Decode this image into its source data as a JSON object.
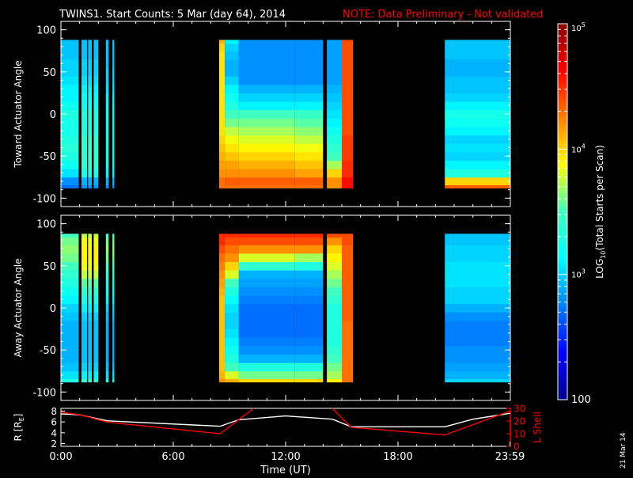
{
  "title": {
    "main": "TWINS1. Start Counts:  5 Mar (day  64), 2014",
    "note": "NOTE: Data Preliminary - Not validated"
  },
  "side_date": "21 Mar 14",
  "colors": {
    "background": "#000000",
    "axes": "#ffffff",
    "note": "#ff0000",
    "r_line": "#ffffff",
    "lshell_line": "#ff0000"
  },
  "chart_data": [
    {
      "type": "heatmap",
      "name": "toward",
      "ylabel": "Toward Actuator Angle",
      "ylim": [
        -110,
        110
      ],
      "yticks": [
        -100,
        -50,
        0,
        50,
        100
      ],
      "xlim": [
        0,
        24
      ],
      "y_rows": [
        -88,
        -80,
        -70,
        -60,
        -50,
        -40,
        -30,
        -20,
        -10,
        0,
        10,
        20,
        30,
        40,
        50,
        60,
        70,
        80,
        88
      ],
      "segments": [
        {
          "t0": 0.0,
          "t1": 0.95,
          "values": [
            2.7,
            2.8,
            3.05,
            3.2,
            3.3,
            3.35,
            3.3,
            3.25,
            3.25,
            3.3,
            3.2,
            3.1,
            3.1,
            3.05,
            3.0,
            3.0,
            2.95,
            2.95,
            2.95
          ]
        },
        {
          "t0": 1.1,
          "t1": 1.4,
          "values": [
            2.8,
            2.9,
            3.25,
            3.4,
            3.4,
            3.4,
            3.4,
            3.3,
            3.3,
            3.3,
            3.2,
            3.15,
            3.1,
            3.05,
            3.0,
            3.0,
            2.95,
            2.95,
            2.95
          ]
        },
        {
          "t0": 1.45,
          "t1": 1.65,
          "values": [
            2.8,
            2.9,
            3.25,
            3.4,
            3.4,
            3.4,
            3.4,
            3.3,
            3.3,
            3.3,
            3.2,
            3.15,
            3.1,
            3.05,
            3.0,
            3.0,
            2.95,
            2.95,
            2.95
          ]
        },
        {
          "t0": 1.75,
          "t1": 2.0,
          "values": [
            2.8,
            2.9,
            3.25,
            3.4,
            3.4,
            3.4,
            3.4,
            3.3,
            3.3,
            3.3,
            3.2,
            3.15,
            3.1,
            3.05,
            3.0,
            3.0,
            2.95,
            2.95,
            2.95
          ]
        },
        {
          "t0": 2.4,
          "t1": 2.55,
          "values": [
            2.8,
            2.9,
            3.1,
            3.2,
            3.2,
            3.2,
            3.2,
            3.2,
            3.2,
            3.2,
            3.15,
            3.1,
            3.05,
            3.0,
            3.0,
            2.95,
            2.95,
            2.95,
            2.95
          ]
        },
        {
          "t0": 2.75,
          "t1": 2.85,
          "values": [
            2.8,
            2.9,
            3.1,
            3.2,
            3.2,
            3.2,
            3.2,
            3.2,
            3.2,
            3.2,
            3.15,
            3.1,
            3.05,
            3.0,
            3.0,
            2.95,
            2.95,
            2.95,
            2.95
          ]
        },
        {
          "t0": 8.45,
          "t1": 8.75,
          "values": [
            4.3,
            4.3,
            4.2,
            4.15,
            4.1,
            4.05,
            4.0,
            3.95,
            3.95,
            3.95,
            3.95,
            3.95,
            3.95,
            3.95,
            3.95,
            3.95,
            3.95,
            4.0,
            4.1
          ]
        },
        {
          "t0": 8.75,
          "t1": 9.5,
          "values": [
            4.3,
            4.35,
            4.2,
            4.15,
            4.05,
            3.95,
            3.85,
            3.75,
            3.6,
            3.5,
            3.3,
            3.2,
            3.1,
            3.0,
            2.9,
            2.9,
            2.95,
            3.0,
            3.1
          ]
        },
        {
          "t0": 9.5,
          "t1": 12.5,
          "values": [
            4.3,
            4.35,
            4.2,
            4.1,
            4.0,
            3.9,
            3.8,
            3.7,
            3.6,
            3.5,
            3.1,
            3.0,
            2.9,
            2.8,
            2.8,
            2.8,
            2.8,
            2.8,
            2.8
          ]
        },
        {
          "t0": 12.5,
          "t1": 14.0,
          "values": [
            4.3,
            4.35,
            4.15,
            4.05,
            3.95,
            3.85,
            3.75,
            3.65,
            3.55,
            3.45,
            3.1,
            3.0,
            2.9,
            2.8,
            2.8,
            2.8,
            2.8,
            2.8,
            2.8
          ]
        },
        {
          "t0": 14.2,
          "t1": 15.0,
          "values": [
            4.2,
            4.2,
            4.0,
            3.7,
            3.5,
            3.4,
            3.3,
            3.2,
            3.1,
            3.05,
            3.0,
            2.95,
            2.9,
            2.85,
            2.85,
            2.85,
            2.85,
            2.85,
            2.85
          ]
        },
        {
          "t0": 15.0,
          "t1": 15.6,
          "values": [
            4.6,
            4.6,
            4.5,
            4.5,
            4.45,
            4.45,
            4.45,
            4.4,
            4.4,
            4.4,
            4.4,
            4.4,
            4.4,
            4.4,
            4.4,
            4.4,
            4.4,
            4.4,
            4.4
          ]
        },
        {
          "t0": 20.5,
          "t1": 24.0,
          "values": [
            4.35,
            4.0,
            3.3,
            3.1,
            3.0,
            3.05,
            3.0,
            3.1,
            3.2,
            3.25,
            3.1,
            3.0,
            2.95,
            2.95,
            2.9,
            2.9,
            2.95,
            2.95,
            2.95
          ]
        }
      ]
    },
    {
      "type": "heatmap",
      "name": "away",
      "ylabel": "Away Actuator Angle",
      "ylim": [
        -110,
        110
      ],
      "yticks": [
        -100,
        -50,
        0,
        50,
        100
      ],
      "xlim": [
        0,
        24
      ],
      "y_rows": [
        -88,
        -80,
        -70,
        -60,
        -50,
        -40,
        -30,
        -20,
        -10,
        0,
        10,
        20,
        30,
        40,
        50,
        60,
        70,
        80,
        88
      ],
      "segments": [
        {
          "t0": 0.0,
          "t1": 0.95,
          "values": [
            3.3,
            3.05,
            2.95,
            2.9,
            2.9,
            2.9,
            2.9,
            2.9,
            2.95,
            3.0,
            3.1,
            3.2,
            3.3,
            3.4,
            3.5,
            3.6,
            3.65,
            3.6,
            3.5
          ]
        },
        {
          "t0": 1.1,
          "t1": 1.4,
          "values": [
            3.4,
            3.1,
            3.0,
            2.95,
            2.95,
            2.95,
            2.95,
            2.95,
            3.0,
            3.1,
            3.25,
            3.4,
            3.55,
            3.75,
            3.85,
            3.9,
            3.9,
            3.85,
            3.75
          ]
        },
        {
          "t0": 1.45,
          "t1": 1.65,
          "values": [
            3.4,
            3.1,
            3.0,
            2.95,
            2.95,
            2.95,
            2.95,
            2.95,
            3.0,
            3.1,
            3.25,
            3.4,
            3.55,
            3.75,
            3.85,
            3.9,
            3.9,
            3.85,
            3.75
          ]
        },
        {
          "t0": 1.75,
          "t1": 2.0,
          "values": [
            3.4,
            3.1,
            3.0,
            2.95,
            2.95,
            2.95,
            2.95,
            2.95,
            3.0,
            3.1,
            3.25,
            3.4,
            3.55,
            3.75,
            3.85,
            3.9,
            3.9,
            3.85,
            3.75
          ]
        },
        {
          "t0": 2.4,
          "t1": 2.55,
          "values": [
            3.3,
            3.05,
            2.95,
            2.9,
            2.9,
            2.9,
            2.9,
            2.9,
            2.95,
            3.0,
            3.1,
            3.2,
            3.3,
            3.4,
            3.5,
            3.6,
            3.65,
            3.6,
            3.5
          ]
        },
        {
          "t0": 2.75,
          "t1": 2.85,
          "values": [
            3.3,
            3.05,
            2.95,
            2.9,
            2.9,
            2.9,
            2.9,
            2.9,
            2.95,
            3.0,
            3.1,
            3.2,
            3.3,
            3.4,
            3.5,
            3.6,
            3.65,
            3.6,
            3.5
          ]
        },
        {
          "t0": 8.45,
          "t1": 8.75,
          "values": [
            4.2,
            4.1,
            4.05,
            4.05,
            4.05,
            4.05,
            4.05,
            4.05,
            4.05,
            4.05,
            4.05,
            4.1,
            4.15,
            4.2,
            4.25,
            4.3,
            4.4,
            4.5,
            4.5
          ]
        },
        {
          "t0": 8.75,
          "t1": 9.5,
          "values": [
            4.1,
            3.8,
            3.5,
            3.3,
            3.2,
            3.1,
            3.05,
            3.0,
            3.0,
            3.05,
            3.15,
            3.3,
            3.5,
            3.8,
            4.0,
            4.2,
            4.3,
            4.4,
            4.5
          ]
        },
        {
          "t0": 9.5,
          "t1": 12.5,
          "values": [
            4.0,
            3.6,
            3.3,
            2.9,
            2.8,
            2.75,
            2.7,
            2.7,
            2.7,
            2.7,
            2.75,
            2.8,
            2.85,
            2.9,
            3.4,
            3.8,
            4.2,
            4.4,
            4.5
          ]
        },
        {
          "t0": 12.5,
          "t1": 14.0,
          "values": [
            4.0,
            3.6,
            3.3,
            2.9,
            2.8,
            2.75,
            2.7,
            2.7,
            2.7,
            2.7,
            2.75,
            2.8,
            2.85,
            2.9,
            3.3,
            3.7,
            4.2,
            4.4,
            4.5
          ]
        },
        {
          "t0": 14.2,
          "t1": 15.0,
          "values": [
            3.9,
            3.7,
            3.6,
            3.5,
            3.4,
            3.3,
            3.3,
            3.3,
            3.3,
            3.3,
            3.4,
            3.5,
            3.6,
            3.7,
            3.8,
            3.9,
            4.0,
            4.2,
            4.4
          ]
        },
        {
          "t0": 15.0,
          "t1": 15.6,
          "values": [
            4.3,
            4.3,
            4.3,
            4.3,
            4.3,
            4.3,
            4.3,
            4.3,
            4.35,
            4.35,
            4.35,
            4.35,
            4.35,
            4.35,
            4.35,
            4.35,
            4.35,
            4.4,
            4.4
          ]
        },
        {
          "t0": 20.5,
          "t1": 24.0,
          "values": [
            3.0,
            2.9,
            2.85,
            2.8,
            2.8,
            2.75,
            2.75,
            2.75,
            2.8,
            2.9,
            3.0,
            3.0,
            3.05,
            3.05,
            3.05,
            3.0,
            3.0,
            2.95,
            2.95
          ]
        }
      ]
    },
    {
      "type": "line",
      "name": "orbit",
      "ylabel_left": "R [R",
      "ylabel_left_sub": "E",
      "ylabel_left_end": "]",
      "ylabel_right": "L Shell",
      "xlabel": "Time (UT)",
      "xlim": [
        0,
        24
      ],
      "xtick_values": [
        0,
        6,
        12,
        18,
        23.98
      ],
      "xtick_labels": [
        "0:00",
        "6:00",
        "12:00",
        "18:00",
        "23:59"
      ],
      "left_ylim": [
        1.5,
        8.5
      ],
      "left_yticks": [
        2,
        4,
        6,
        8
      ],
      "right_ylim": [
        0,
        30
      ],
      "right_yticks": [
        0,
        10,
        20,
        30
      ],
      "series": [
        {
          "name": "R",
          "axis": "left",
          "x": [
            0,
            1,
            2.5,
            8.5,
            9.5,
            12,
            14.5,
            15.5,
            20.5,
            22,
            24
          ],
          "y": [
            7.5,
            7.3,
            6.2,
            5.2,
            6.4,
            7.1,
            6.5,
            5.1,
            5.1,
            6.5,
            7.6
          ]
        },
        {
          "name": "L Shell",
          "axis": "right",
          "x": [
            0,
            1,
            2.5,
            8.5,
            10.3
          ],
          "y": [
            27,
            25,
            19,
            10,
            30
          ]
        },
        {
          "name": "L Shell",
          "axis": "right",
          "x": [
            14.5,
            15.5,
            20.5,
            24
          ],
          "y": [
            30,
            15,
            9,
            28
          ]
        }
      ]
    },
    {
      "type": "heatmap",
      "name": "colorbar",
      "label_prefix": "LOG",
      "label_sub": "10",
      "label_suffix": "(Total Starts per Scan)",
      "scale": "log",
      "range": [
        100,
        100000
      ],
      "tick_values": [
        3,
        4,
        5
      ],
      "tick_labels": [
        {
          "base": "10",
          "exp": "3"
        },
        {
          "base": "10",
          "exp": "4"
        },
        {
          "base": "10",
          "exp": "5"
        }
      ],
      "bottom_label": "100"
    }
  ]
}
